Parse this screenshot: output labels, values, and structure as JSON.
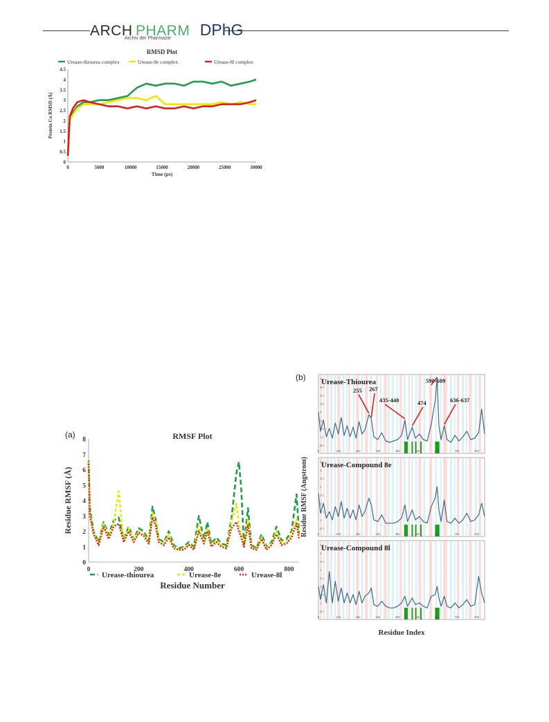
{
  "header": {
    "logo_arch": "ARCH",
    "logo_pharm": "PHARM",
    "logo_dphg": "DPhG",
    "logo_sub": "Archiv der Pharmazie",
    "colors": {
      "rule": "#3a3a3a",
      "pharm": "#4caf6a",
      "dphg": "#1f3a6b"
    }
  },
  "chart_data": [
    {
      "id": "rmsd",
      "type": "line",
      "title": "RMSD Plot",
      "xlabel": "Time (ps)",
      "ylabel": "Protein Cα RMSD (Å)",
      "xlim": [
        0,
        30000
      ],
      "ylim": [
        0,
        4.5
      ],
      "xticks": [
        0,
        5000,
        10000,
        15000,
        20000,
        25000,
        30000
      ],
      "yticks": [
        0,
        0.5,
        1,
        1.5,
        2,
        2.5,
        3,
        3.5,
        4,
        4.5
      ],
      "legend_position": "top",
      "x": [
        0,
        300,
        800,
        1500,
        2500,
        3500,
        5000,
        6500,
        8000,
        9500,
        11000,
        12500,
        14000,
        15500,
        17000,
        18500,
        20000,
        21500,
        23000,
        24500,
        26000,
        27500,
        29000,
        30000
      ],
      "series": [
        {
          "name": "Urease-thiourea complex",
          "color": "#1e9e4a",
          "values": [
            0.3,
            2.0,
            2.4,
            2.7,
            2.9,
            2.9,
            3.0,
            3.0,
            3.1,
            3.2,
            3.6,
            3.8,
            3.7,
            3.8,
            3.8,
            3.7,
            3.9,
            3.9,
            3.8,
            3.9,
            3.7,
            3.8,
            3.9,
            4.0
          ]
        },
        {
          "name": "Urease-8e complex",
          "color": "#f2e600",
          "values": [
            0.3,
            2.0,
            2.3,
            2.6,
            2.8,
            2.8,
            2.8,
            2.9,
            3.0,
            3.1,
            3.1,
            3.0,
            3.2,
            2.8,
            2.8,
            2.8,
            2.8,
            2.8,
            2.8,
            2.9,
            2.8,
            2.9,
            2.8,
            2.8
          ]
        },
        {
          "name": "Urease-8l complex",
          "color": "#e01b1b",
          "values": [
            0.3,
            2.2,
            2.6,
            2.9,
            3.0,
            2.9,
            2.8,
            2.7,
            2.7,
            2.6,
            2.7,
            2.6,
            2.7,
            2.6,
            2.6,
            2.7,
            2.6,
            2.7,
            2.7,
            2.8,
            2.8,
            2.8,
            2.9,
            3.0
          ]
        }
      ]
    },
    {
      "id": "rmsf",
      "panel": "(a)",
      "type": "line",
      "title": "RMSF Plot",
      "xlabel": "Residue Number",
      "ylabel": "Residue RMSF (Å)",
      "xlim": [
        0,
        840
      ],
      "ylim": [
        0,
        8
      ],
      "xticks": [
        0,
        200,
        400,
        600,
        800
      ],
      "yticks": [
        0,
        1,
        2,
        3,
        4,
        5,
        6,
        7,
        8
      ],
      "legend_position": "bottom",
      "x": [
        0,
        5,
        20,
        40,
        60,
        80,
        100,
        120,
        140,
        160,
        180,
        200,
        220,
        240,
        255,
        267,
        280,
        300,
        320,
        340,
        360,
        380,
        400,
        420,
        440,
        460,
        474,
        490,
        510,
        530,
        550,
        570,
        590,
        600,
        609,
        620,
        636,
        650,
        670,
        690,
        710,
        730,
        750,
        770,
        790,
        810,
        830,
        840
      ],
      "series": [
        {
          "name": "Urease-thiourea",
          "color": "#1e9e4a",
          "values": [
            6.6,
            3.5,
            2.0,
            1.3,
            2.6,
            1.8,
            2.7,
            2.9,
            1.5,
            2.3,
            1.5,
            2.2,
            2.0,
            1.4,
            3.6,
            2.8,
            1.5,
            1.3,
            2.0,
            1.1,
            0.9,
            1.0,
            1.3,
            1.0,
            3.0,
            1.5,
            2.6,
            1.2,
            1.6,
            1.2,
            1.1,
            2.8,
            5.8,
            6.5,
            4.8,
            1.2,
            3.5,
            1.1,
            0.9,
            1.8,
            1.0,
            1.3,
            2.3,
            1.4,
            1.5,
            2.0,
            4.4,
            1.8
          ]
        },
        {
          "name": "Urease-8e",
          "color": "#f2e600",
          "values": [
            6.5,
            3.2,
            1.9,
            1.2,
            2.5,
            1.6,
            2.5,
            4.6,
            1.4,
            2.2,
            1.4,
            2.0,
            1.8,
            1.3,
            3.2,
            2.6,
            1.4,
            1.2,
            1.8,
            1.0,
            0.8,
            0.9,
            1.2,
            0.9,
            2.4,
            1.3,
            2.2,
            1.1,
            1.4,
            1.1,
            1.0,
            2.6,
            3.8,
            2.4,
            1.8,
            1.1,
            2.8,
            1.0,
            0.8,
            1.6,
            0.9,
            1.2,
            2.0,
            1.2,
            1.3,
            1.8,
            2.8,
            1.6
          ]
        },
        {
          "name": "Urease-8l",
          "color": "#d7261e",
          "values": [
            6.4,
            3.0,
            1.8,
            1.1,
            2.3,
            1.5,
            2.3,
            2.5,
            1.3,
            2.0,
            1.3,
            1.9,
            1.7,
            1.2,
            2.9,
            2.4,
            1.3,
            1.1,
            1.6,
            0.9,
            0.8,
            0.8,
            1.1,
            0.8,
            2.0,
            1.2,
            2.0,
            1.0,
            1.3,
            1.0,
            0.9,
            2.2,
            2.6,
            2.0,
            1.6,
            1.0,
            2.4,
            0.9,
            0.8,
            1.5,
            0.8,
            1.1,
            1.8,
            1.1,
            1.2,
            1.6,
            2.5,
            1.5
          ]
        }
      ]
    },
    {
      "id": "rmsf-index",
      "panel": "(b)",
      "type": "line",
      "xlabel": "Residue Index",
      "ylabel": "Residue RMSF (Angstrom)",
      "xlim": [
        0,
        840
      ],
      "xticks": [
        0,
        100,
        200,
        300,
        400,
        500,
        600,
        700,
        800
      ],
      "line_color": "#3c6a86",
      "helix_color": "#f6c1bd",
      "strand_color": "#bfe6f2",
      "contact_color": "#1e9e1e",
      "x": [
        0,
        10,
        25,
        40,
        55,
        70,
        85,
        100,
        115,
        130,
        145,
        160,
        175,
        190,
        205,
        220,
        235,
        255,
        267,
        280,
        300,
        320,
        340,
        360,
        380,
        400,
        420,
        437,
        450,
        474,
        490,
        510,
        530,
        550,
        570,
        590,
        600,
        609,
        620,
        636,
        650,
        670,
        690,
        710,
        730,
        750,
        770,
        790,
        810,
        825,
        840
      ],
      "subplots": [
        {
          "title": "Urease-Thiourea",
          "ylim": [
            0,
            5.4
          ],
          "yticks": [
            0.6,
            1.2,
            1.8,
            2.4,
            3.0,
            3.6,
            4.2,
            4.8,
            5.4
          ],
          "values": [
            3.0,
            1.6,
            2.4,
            1.2,
            1.8,
            1.1,
            2.2,
            1.4,
            2.6,
            1.3,
            2.0,
            1.2,
            1.9,
            1.1,
            2.3,
            1.4,
            1.7,
            2.8,
            2.5,
            1.2,
            1.0,
            1.5,
            0.9,
            0.8,
            0.9,
            1.0,
            1.3,
            2.4,
            1.0,
            1.9,
            1.1,
            1.4,
            1.0,
            0.9,
            2.1,
            3.8,
            5.4,
            2.0,
            1.0,
            2.0,
            1.0,
            0.8,
            1.3,
            0.9,
            1.2,
            1.6,
            1.0,
            1.1,
            1.5,
            3.2,
            1.4
          ],
          "annotations": [
            "255",
            "267",
            "435-440",
            "474",
            "590-609",
            "636-637"
          ],
          "annotation_x": [
            255,
            267,
            437,
            474,
            600,
            636
          ]
        },
        {
          "title": "Urease-Compound 8e",
          "ylim": [
            0,
            4.5
          ],
          "yticks": [
            0.5,
            1.0,
            1.5,
            2.0,
            2.5,
            3.0,
            3.5,
            4.0,
            4.5
          ],
          "values": [
            2.6,
            1.4,
            2.0,
            1.1,
            1.5,
            1.0,
            1.8,
            1.2,
            2.1,
            1.1,
            1.7,
            1.1,
            1.6,
            1.0,
            1.9,
            1.2,
            1.5,
            2.3,
            1.9,
            1.0,
            0.9,
            1.3,
            0.8,
            0.8,
            0.8,
            0.9,
            1.1,
            1.9,
            0.9,
            1.6,
            1.0,
            1.2,
            0.9,
            0.8,
            1.8,
            2.3,
            3.0,
            1.6,
            0.9,
            2.2,
            0.9,
            0.8,
            1.1,
            0.8,
            1.0,
            1.4,
            0.9,
            1.0,
            1.3,
            2.0,
            1.2
          ]
        },
        {
          "title": "Urease-Compound 8l",
          "ylim": [
            0,
            4.5
          ],
          "yticks": [
            0.5,
            1.0,
            1.5,
            2.0,
            2.5,
            3.0,
            3.5,
            4.0,
            4.5
          ],
          "values": [
            2.0,
            1.2,
            2.1,
            1.0,
            2.9,
            1.0,
            2.3,
            1.1,
            1.9,
            1.0,
            1.6,
            1.0,
            1.5,
            0.9,
            1.7,
            1.0,
            1.4,
            1.6,
            1.9,
            0.9,
            0.8,
            1.1,
            0.8,
            0.7,
            0.7,
            0.8,
            1.0,
            1.4,
            0.8,
            1.3,
            0.9,
            1.0,
            0.8,
            0.7,
            1.4,
            1.5,
            2.0,
            1.3,
            0.8,
            1.4,
            0.8,
            0.7,
            1.0,
            0.7,
            0.9,
            1.2,
            0.8,
            0.9,
            2.6,
            1.6,
            1.0
          ]
        }
      ]
    }
  ]
}
